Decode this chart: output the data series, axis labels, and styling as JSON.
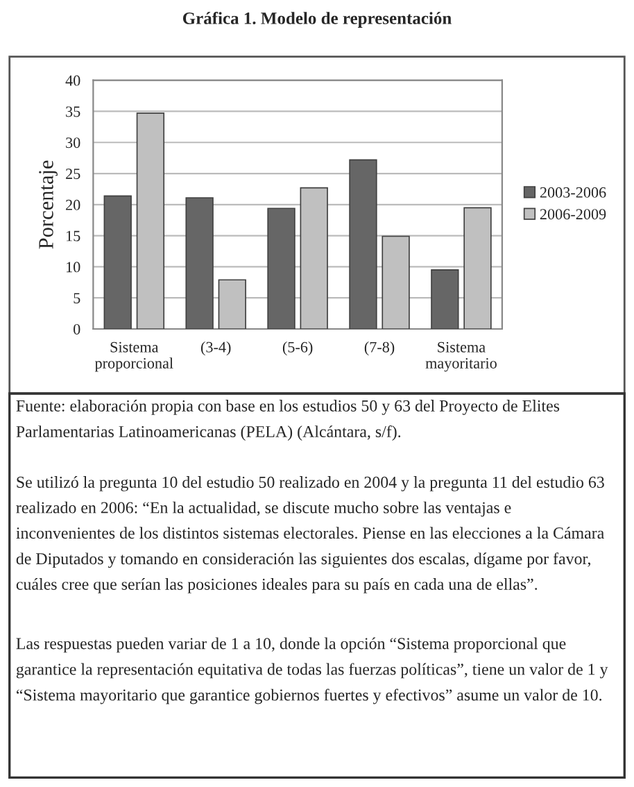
{
  "chart_data": {
    "type": "bar",
    "title": "Gráfica 1. Modelo de representación",
    "ylabel": "Porcentaje",
    "categories": [
      "Sistema\nproporcional",
      "(3-4)",
      "(5-6)",
      "(7-8)",
      "Sistema\nmayoritario"
    ],
    "series": [
      {
        "name": "2003-2006",
        "color": "#666666",
        "values": [
          21.4,
          21.1,
          19.4,
          27.2,
          9.5
        ]
      },
      {
        "name": "2006-2009",
        "color": "#c0c0c0",
        "values": [
          34.7,
          7.9,
          22.7,
          14.9,
          19.5
        ]
      }
    ],
    "ylim": [
      0,
      40
    ],
    "yticks": [
      0,
      5,
      10,
      15,
      20,
      25,
      30,
      35,
      40
    ],
    "grid": "y",
    "legend": "right",
    "annotations": [
      "Fuente: elaboración propia con base en los estudios 50 y 63 del Proyecto de Elites Parlamentarias Latinoamericanas (PELA) (Alcántara, s/f).",
      "Se utilizó la pregunta 10 del estudio 50 realizado en 2004 y la pregunta 11 del estudio 63 realizado en 2006: “En la actualidad, se discute mucho sobre las ventajas e inconvenientes de los distintos sistemas electorales. Piense en las elecciones a la Cámara de Diputados y tomando en consideración las siguientes dos escalas, dígame por favor, cuáles cree que serían las posiciones ideales para su país en cada una de ellas”.",
      "Las respuestas pueden variar de 1 a 10, donde la opción “Sistema proporcional que garantice la representación equitativa de todas las fuerzas políticas”, tiene un valor de 1 y “Sistema mayoritario que garantice gobiernos fuertes y efectivos” asume un valor de 10."
    ]
  }
}
